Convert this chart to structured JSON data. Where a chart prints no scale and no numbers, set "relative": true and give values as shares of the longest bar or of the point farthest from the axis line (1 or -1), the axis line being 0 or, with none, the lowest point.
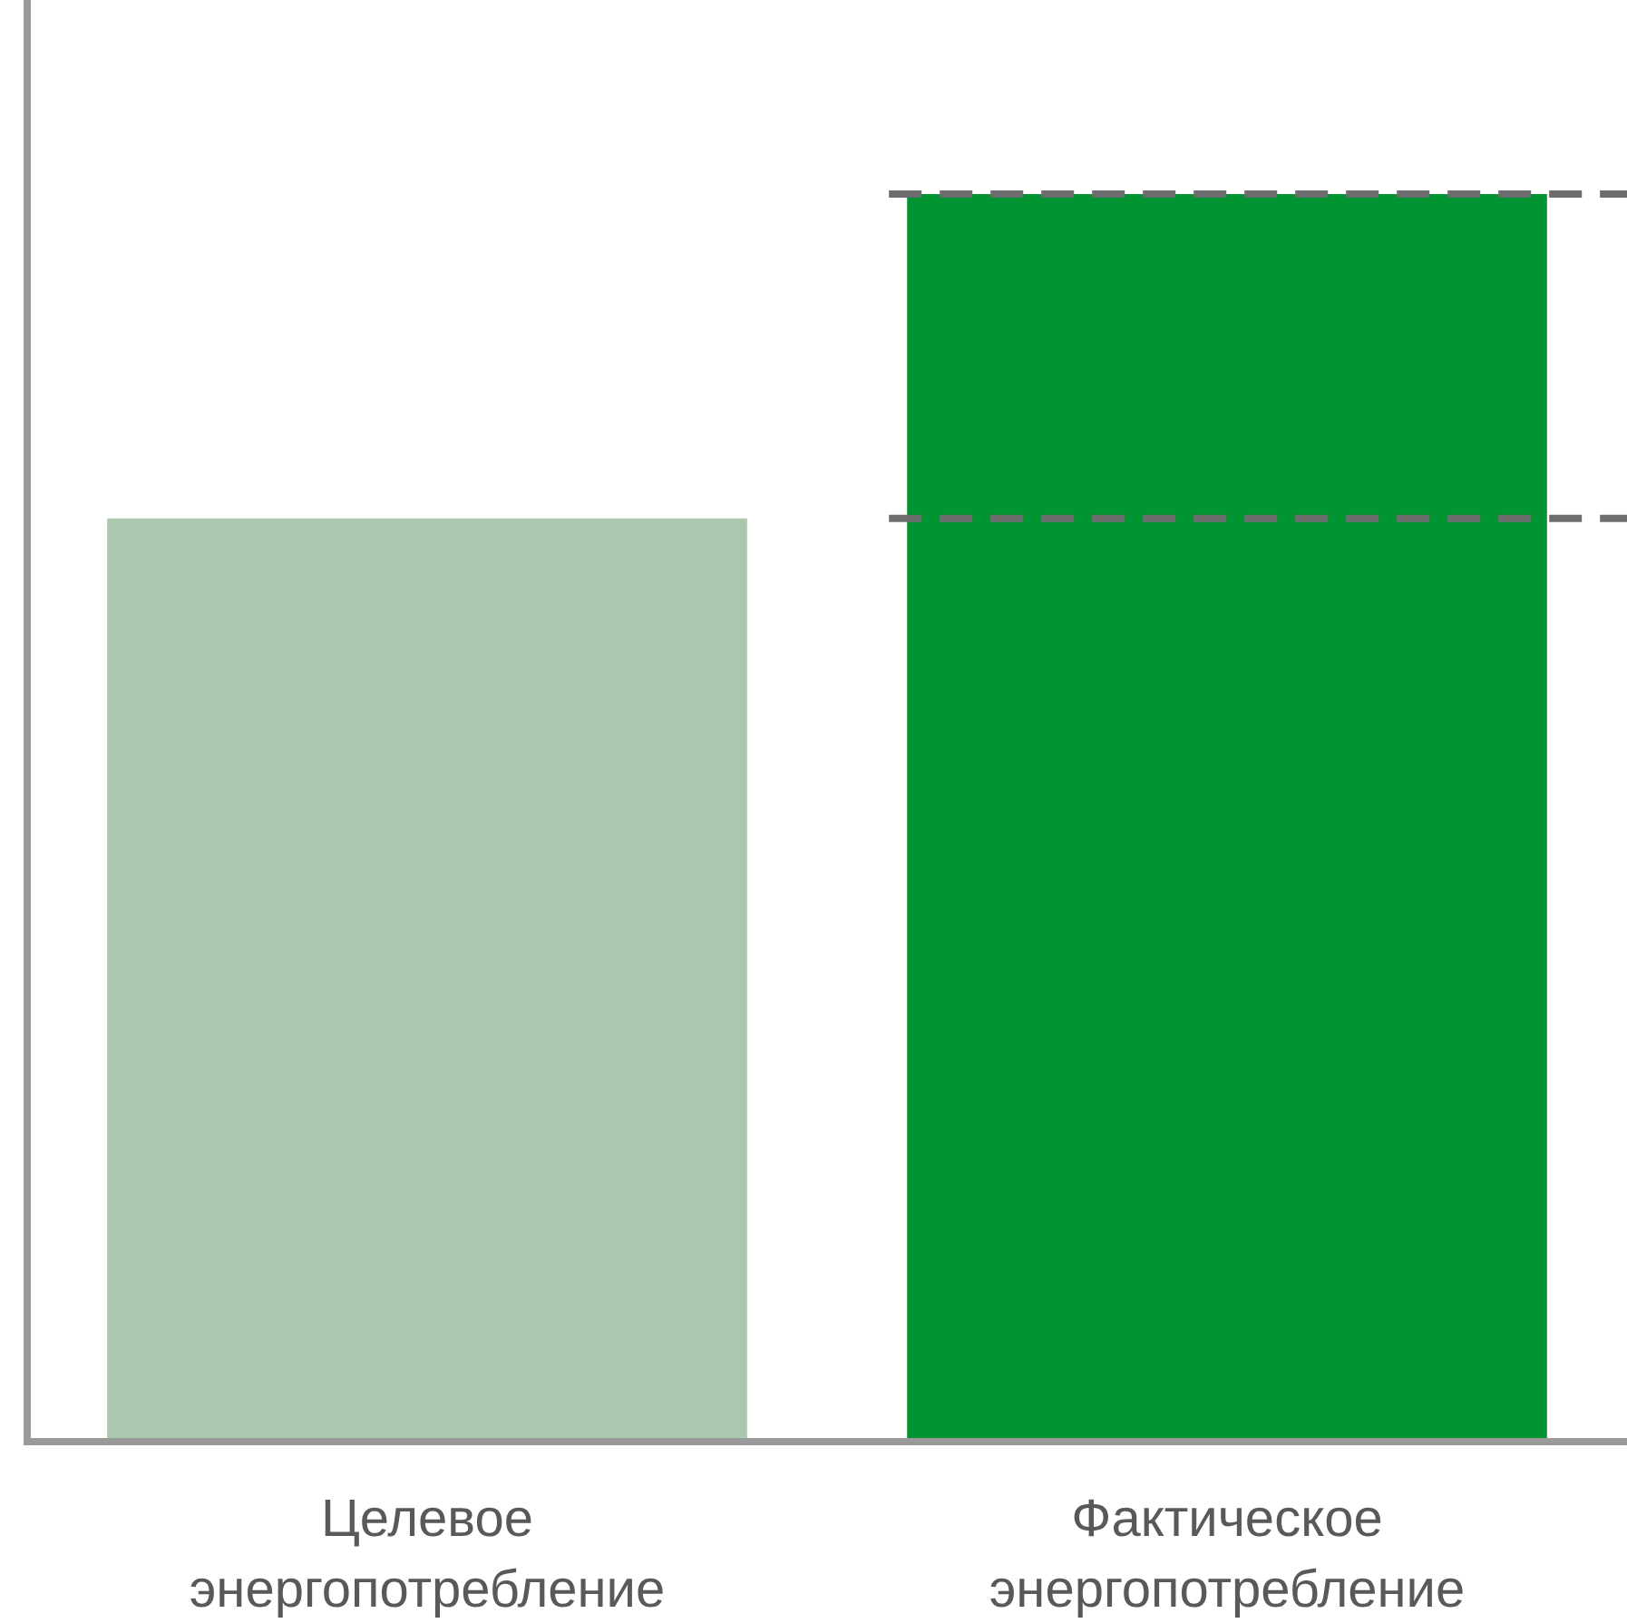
{
  "chart_data": {
    "type": "bar",
    "relative": true,
    "categories": [
      "Целевое энергопотребление",
      "Фактическое энергопотребление"
    ],
    "values": [
      0.74,
      1
    ],
    "colors": [
      "#abc8ae",
      "#009432"
    ],
    "ref_lines": [
      {
        "axis": "y",
        "value": 1,
        "color": "#6d6d70",
        "line_style": "dashed"
      },
      {
        "axis": "y",
        "value": 0.74,
        "color": "#6d6d70",
        "line_style": "dashed"
      }
    ]
  }
}
